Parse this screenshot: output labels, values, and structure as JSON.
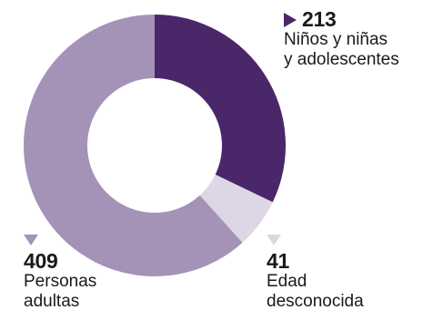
{
  "chart_data": {
    "type": "pie",
    "donut": true,
    "slices": [
      {
        "value": 213,
        "label_line1": "Niños y niñas",
        "label_line2": "y adolescentes",
        "color": "#4a2768"
      },
      {
        "value": 41,
        "label_line1": "Edad",
        "label_line2": "desconocida",
        "color": "#ddd6e4"
      },
      {
        "value": 409,
        "label_line1": "Personas",
        "label_line2": "adultas",
        "color": "#a492b7"
      }
    ],
    "marker_colors": {
      "children": "#4a2768",
      "unknown": "#ddd6e4",
      "adults": "#a492b7"
    }
  }
}
